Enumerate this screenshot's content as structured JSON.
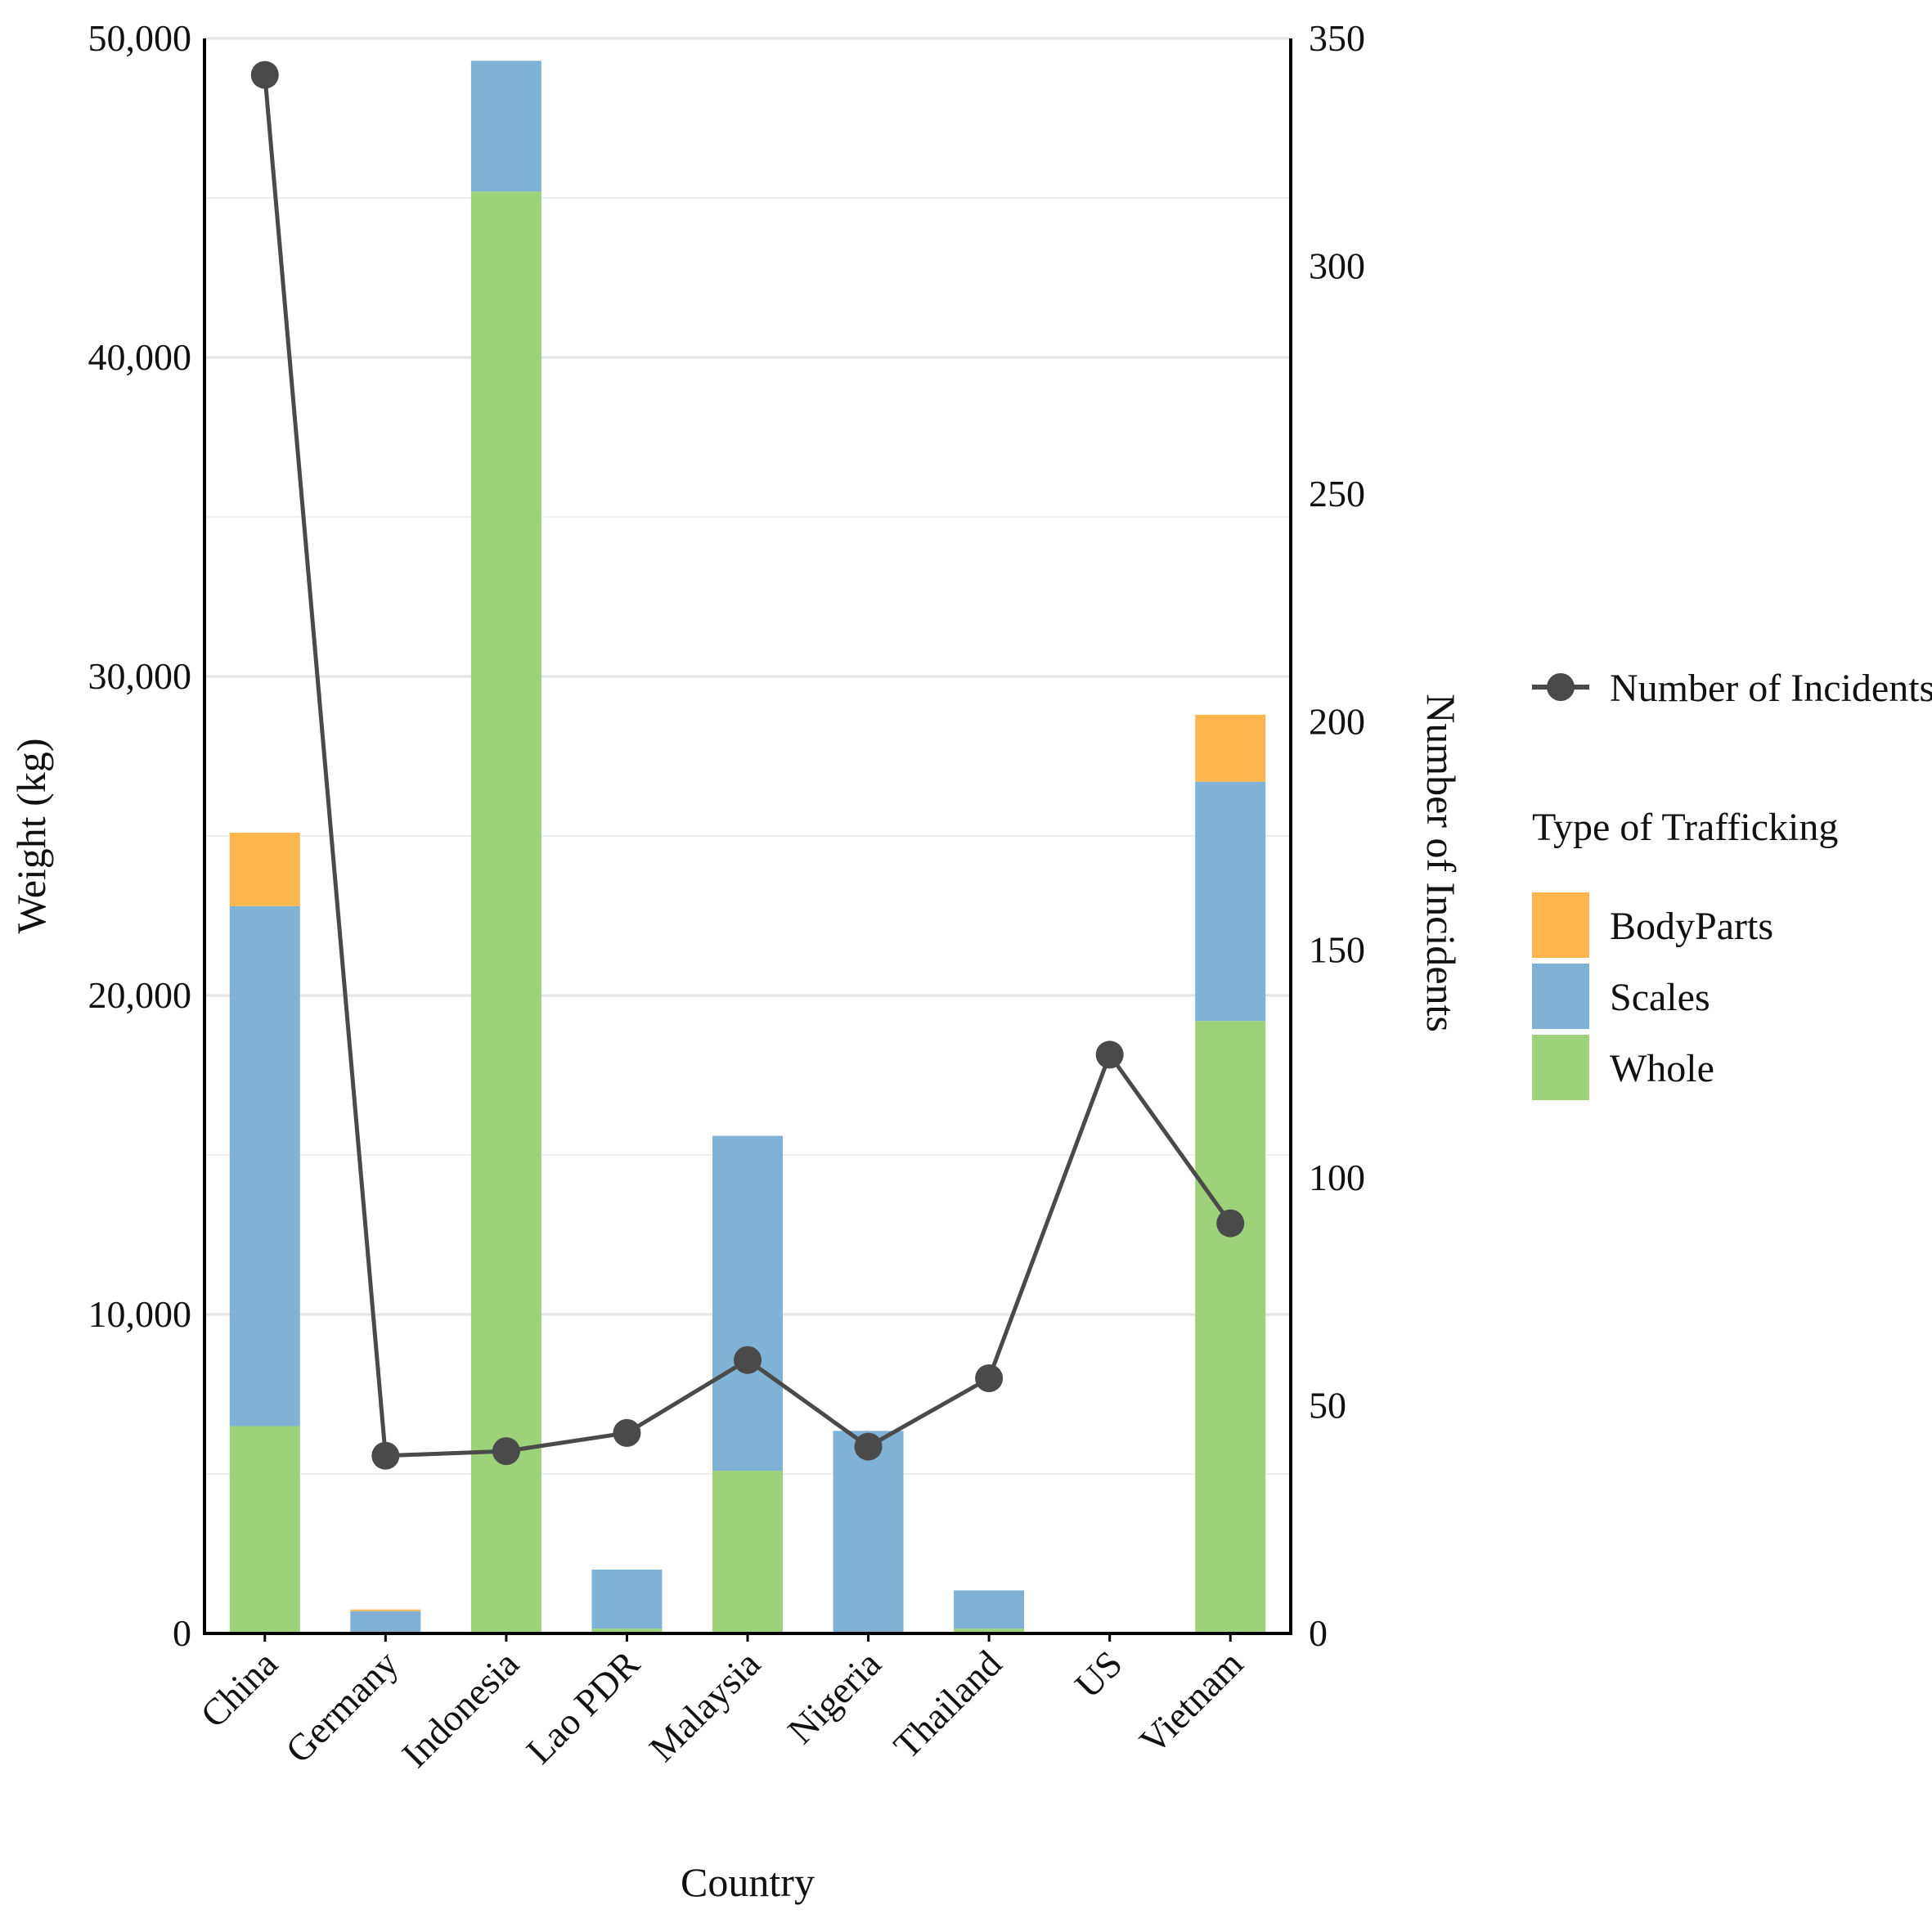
{
  "chart_data": {
    "type": "bar",
    "stacked": true,
    "title": "",
    "xlabel": "Country",
    "ylabel": "Weight (kg)",
    "y2label": "Number of Incidents",
    "ylim": [
      0,
      50000
    ],
    "y2lim": [
      0,
      350
    ],
    "yticks": [
      "0",
      "10,000",
      "20,000",
      "30,000",
      "40,000",
      "50,000"
    ],
    "y2ticks": [
      "0",
      "50",
      "100",
      "150",
      "200",
      "250",
      "300",
      "350"
    ],
    "grid": true,
    "legend_position": "right",
    "legend_title": "Type of Trafficking",
    "categories": [
      "China",
      "Germany",
      "Indonesia",
      "Lao PDR",
      "Malaysia",
      "Nigeria",
      "Thailand",
      "US",
      "Vietnam"
    ],
    "series": [
      {
        "name": "Whole",
        "color": "#9dd27b",
        "values": [
          6500,
          0,
          45200,
          150,
          5100,
          50,
          150,
          0,
          19200
        ]
      },
      {
        "name": "Scales",
        "color": "#7fb2d5",
        "values": [
          16300,
          700,
          4100,
          1850,
          10500,
          6300,
          1200,
          0,
          7500
        ]
      },
      {
        "name": "BodyParts",
        "color": "#fdb54e",
        "values": [
          2300,
          50,
          0,
          0,
          0,
          0,
          0,
          0,
          2100
        ]
      }
    ],
    "line_series": {
      "name": "Number of Incidents",
      "color": "#4a4a4a",
      "axis": "right",
      "values": [
        342,
        39,
        40,
        44,
        60,
        41,
        56,
        127,
        90
      ]
    }
  }
}
